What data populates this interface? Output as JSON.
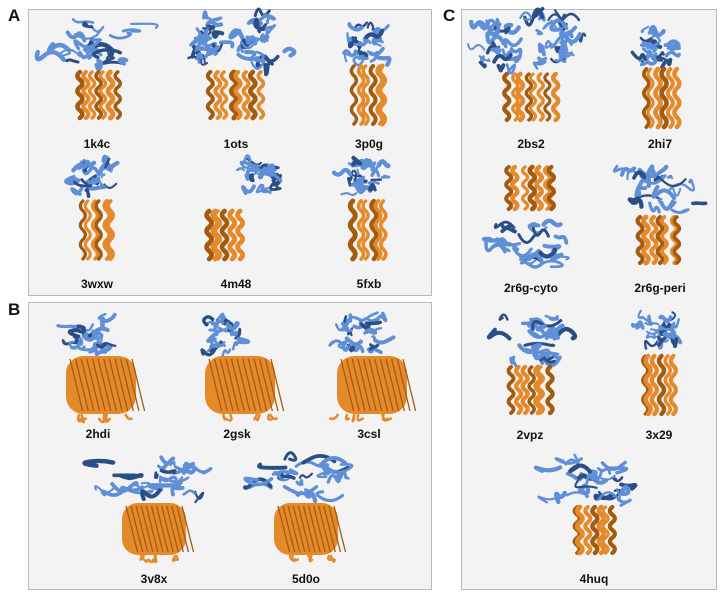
{
  "colors": {
    "soluble": "#5f8fd6",
    "soluble_dark": "#2c4e87",
    "membrane": "#e48a2a",
    "membrane_dark": "#a35b10",
    "panel_bg": "#f3f3f4",
    "panel_border": "#b9b9bd"
  },
  "panels": {
    "A": {
      "label": "A",
      "items": [
        "1k4c",
        "1ots",
        "3p0g",
        "3wxw",
        "4m48",
        "5fxb"
      ]
    },
    "B": {
      "label": "B",
      "items": [
        "2hdi",
        "2gsk",
        "3csl",
        "3v8x",
        "5d0o"
      ]
    },
    "C": {
      "label": "C",
      "items": [
        "2bs2",
        "2hi7",
        "2r6g-cyto",
        "2r6g-peri",
        "2vpz",
        "3x29",
        "4huq"
      ]
    }
  }
}
